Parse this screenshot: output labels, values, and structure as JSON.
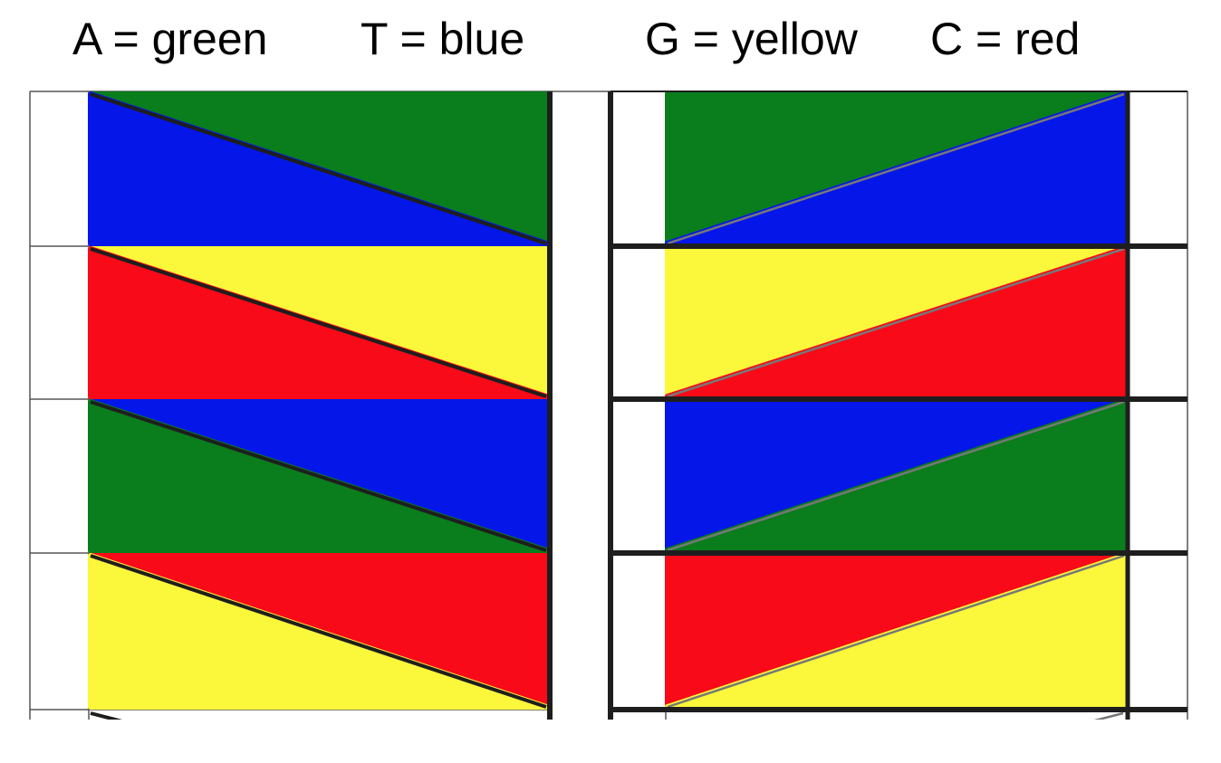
{
  "legend": {
    "a": "A = green",
    "t": "T = blue",
    "g": "G = yellow",
    "c": "C = red"
  },
  "colors": {
    "A": "#0a7d1c",
    "T": "#0516e8",
    "G": "#fbf73a",
    "C": "#f80a18",
    "line": "#1e1e1e",
    "grid": "#555555"
  },
  "left_column": {
    "diagonal_direction": "top-left to bottom-right",
    "rows": [
      {
        "upper": "A",
        "lower": "T"
      },
      {
        "upper": "G",
        "lower": "C"
      },
      {
        "upper": "T",
        "lower": "A"
      },
      {
        "upper": "C",
        "lower": "G"
      }
    ]
  },
  "right_column": {
    "diagonal_direction": "bottom-left to top-right",
    "rows": [
      {
        "upper": "A",
        "lower": "T"
      },
      {
        "upper": "G",
        "lower": "C"
      },
      {
        "upper": "T",
        "lower": "A"
      },
      {
        "upper": "C",
        "lower": "G"
      }
    ]
  }
}
